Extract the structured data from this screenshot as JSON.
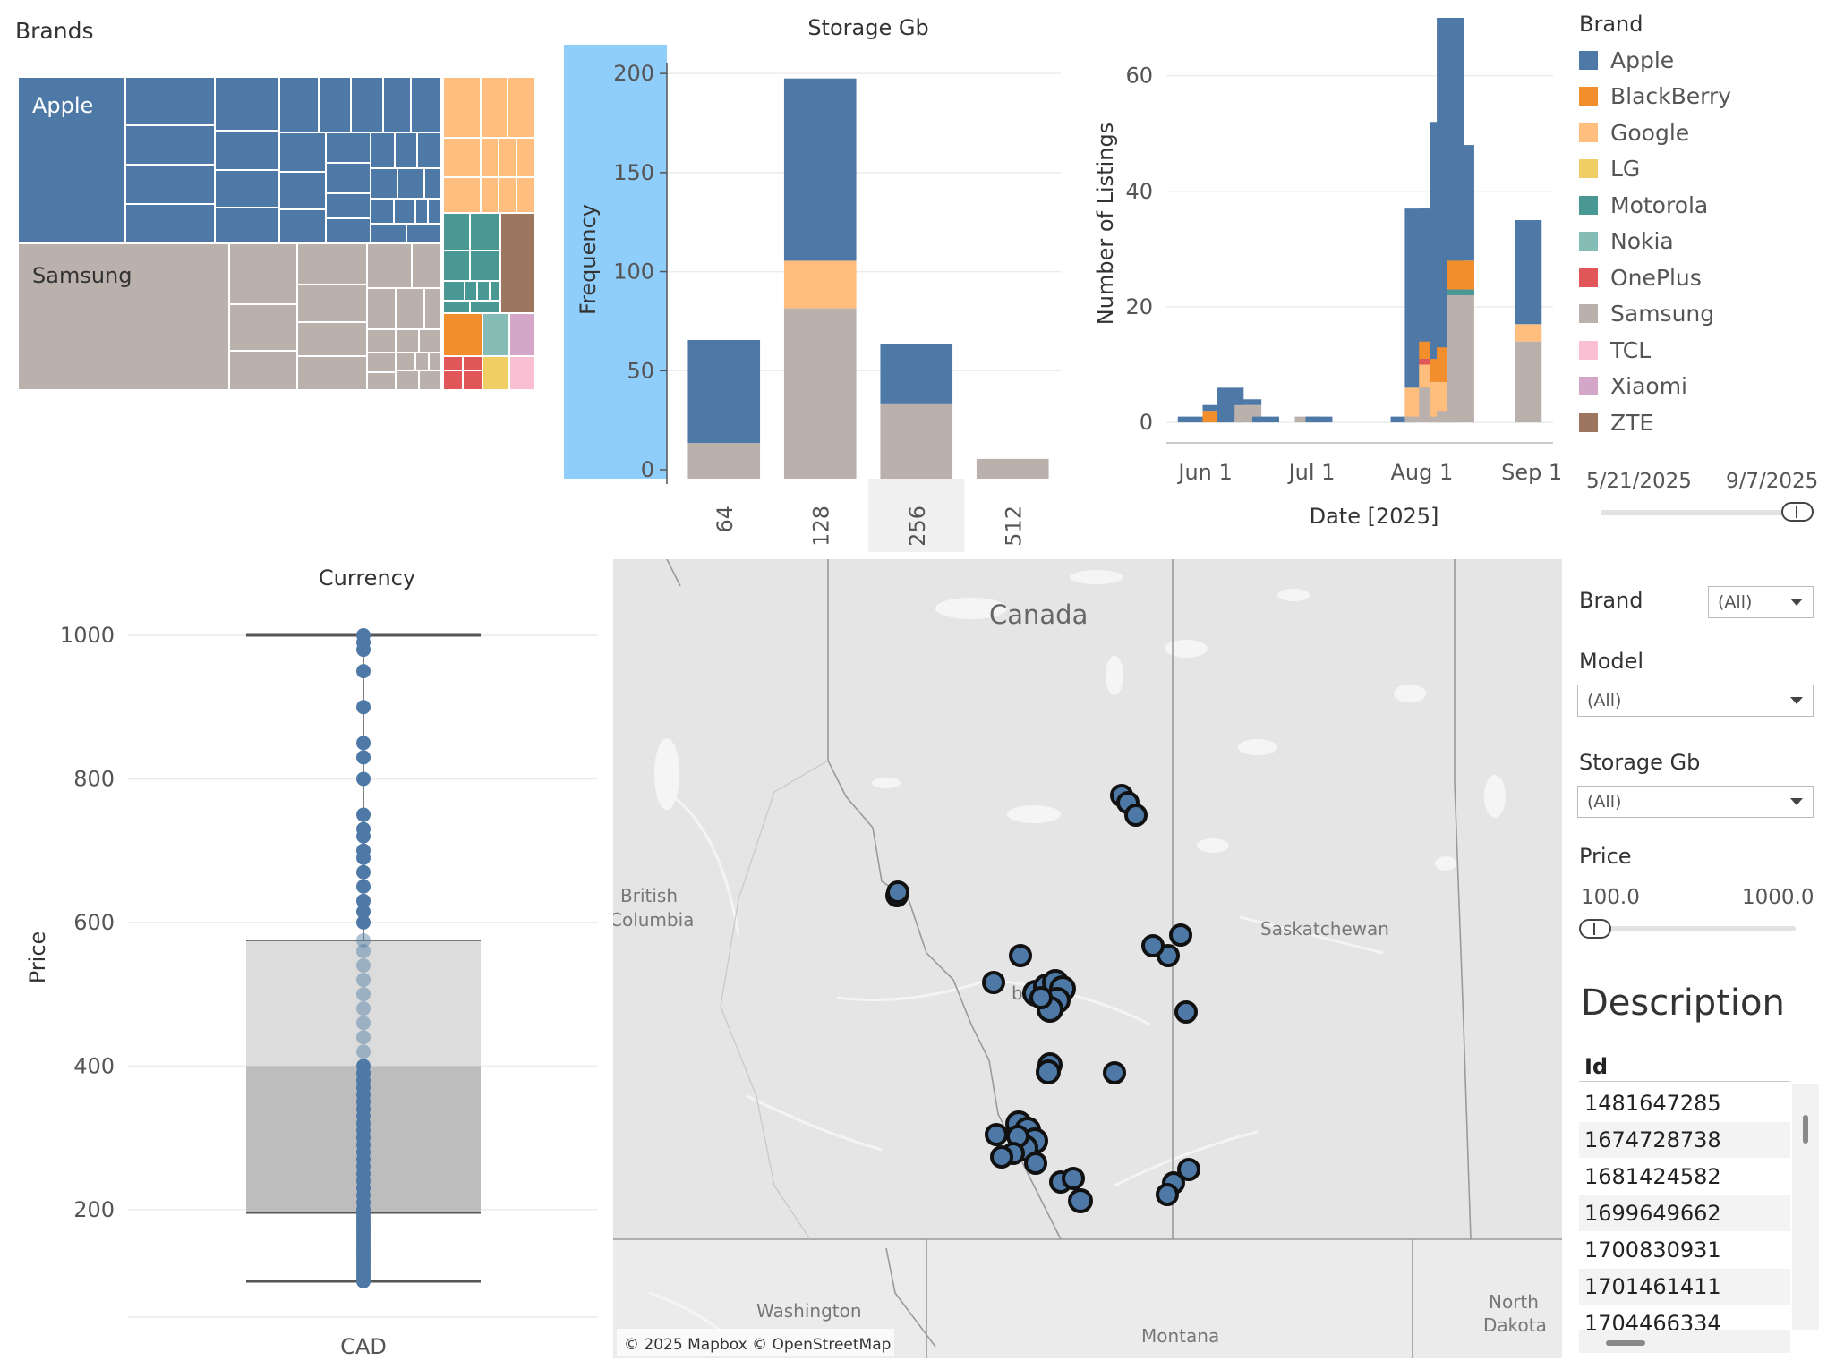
{
  "treemap": {
    "title": "Brands",
    "labels": {
      "apple": "Apple",
      "samsung": "Samsung"
    },
    "colors": {
      "Apple": "#4e79a7",
      "BlackBerry": "#f28e2b",
      "Google": "#ffbe7d",
      "LG": "#f1ce63",
      "Motorola": "#499894",
      "Nokia": "#86bcb6",
      "OnePlus": "#e15759",
      "Samsung": "#bab0ac",
      "TCL": "#fabfd2",
      "Xiaomi": "#d4a6c8",
      "ZTE": "#9d7660"
    }
  },
  "storage_chart": {
    "title": "Storage Gb",
    "chart_data": {
      "type": "bar",
      "stacked": true,
      "title": "Storage Gb",
      "xlabel": "",
      "ylabel": "Frequency",
      "categories": [
        "64",
        "128",
        "256",
        "512"
      ],
      "ylim": [
        0,
        210
      ],
      "yticks": [
        0,
        50,
        100,
        150,
        200
      ],
      "series": [
        {
          "name": "Samsung",
          "values": [
            18,
            86,
            38,
            10
          ]
        },
        {
          "name": "Google",
          "values": [
            0,
            24,
            0,
            0
          ]
        },
        {
          "name": "Apple",
          "values": [
            52,
            92,
            30,
            0
          ]
        }
      ],
      "selected_category": "256"
    }
  },
  "date_chart": {
    "chart_data": {
      "type": "bar",
      "stacked": true,
      "xlabel": "Date [2025]",
      "ylabel": "Number of Listings",
      "x_ticks": [
        "Jun 1",
        "Jul 1",
        "Aug 1",
        "Sep 1"
      ],
      "yticks": [
        0,
        20,
        40,
        60
      ],
      "ylim": [
        -2,
        70
      ],
      "bars": [
        {
          "date": "2025-05-28",
          "Apple": 1
        },
        {
          "date": "2025-06-04",
          "Apple": 1,
          "BlackBerry": 2
        },
        {
          "date": "2025-06-08",
          "Apple": 6
        },
        {
          "date": "2025-06-13",
          "Apple": 1,
          "Samsung": 3
        },
        {
          "date": "2025-06-18",
          "Apple": 1
        },
        {
          "date": "2025-06-30",
          "Samsung": 1
        },
        {
          "date": "2025-07-03",
          "Apple": 1
        },
        {
          "date": "2025-07-27",
          "Apple": 1
        },
        {
          "date": "2025-07-31",
          "Samsung": 1,
          "Google": 5,
          "Apple": 31
        },
        {
          "date": "2025-08-04",
          "Samsung": 6,
          "Google": 4,
          "OnePlus": 1,
          "BlackBerry": 3,
          "Apple": 23
        },
        {
          "date": "2025-08-07",
          "Samsung": 1,
          "Google": 6,
          "Apple": 41,
          "BlackBerry": 4
        },
        {
          "date": "2025-08-09",
          "Samsung": 2,
          "Google": 5,
          "BlackBerry": 6,
          "Apple": 57
        },
        {
          "date": "2025-08-12",
          "Samsung": 22,
          "Motorola": 1,
          "Apple": 20,
          "BlackBerry": 5
        },
        {
          "date": "2025-08-31",
          "Samsung": 14,
          "Google": 3,
          "Apple": 18
        }
      ]
    }
  },
  "date_legend": {
    "title": "Brand",
    "items": [
      {
        "name": "Apple",
        "color": "#4e79a7"
      },
      {
        "name": "BlackBerry",
        "color": "#f28e2b"
      },
      {
        "name": "Google",
        "color": "#ffbe7d"
      },
      {
        "name": "LG",
        "color": "#f1ce63"
      },
      {
        "name": "Motorola",
        "color": "#499894"
      },
      {
        "name": "Nokia",
        "color": "#86bcb6"
      },
      {
        "name": "OnePlus",
        "color": "#e15759"
      },
      {
        "name": "Samsung",
        "color": "#bab0ac"
      },
      {
        "name": "TCL",
        "color": "#fabfd2"
      },
      {
        "name": "Xiaomi",
        "color": "#d4a6c8"
      },
      {
        "name": "ZTE",
        "color": "#9d7660"
      }
    ]
  },
  "date_range": {
    "start": "5/21/2025",
    "end": "9/7/2025",
    "level": 1.0
  },
  "box_chart": {
    "title": "Currency",
    "chart_data": {
      "type": "box",
      "title": "Currency",
      "xlabel": "",
      "ylabel": "Price",
      "categories": [
        "CAD"
      ],
      "ylim": [
        80,
        1030
      ],
      "yticks": [
        200,
        400,
        600,
        800,
        1000
      ],
      "min": 100,
      "q1": 195,
      "median": 400,
      "q3": 575,
      "max": 1000,
      "points": [
        100,
        105,
        110,
        115,
        120,
        125,
        130,
        135,
        140,
        145,
        150,
        155,
        160,
        165,
        170,
        175,
        180,
        185,
        190,
        195,
        200,
        210,
        220,
        230,
        240,
        250,
        260,
        270,
        280,
        290,
        300,
        310,
        320,
        330,
        340,
        350,
        360,
        370,
        380,
        390,
        400,
        420,
        440,
        460,
        480,
        500,
        520,
        540,
        560,
        575,
        600,
        615,
        630,
        650,
        670,
        690,
        700,
        720,
        730,
        750,
        800,
        830,
        850,
        900,
        950,
        980,
        990,
        1000
      ]
    }
  },
  "map": {
    "labels": {
      "country": "Canada",
      "bc": "British Columbia",
      "sask": "Saskatchewan",
      "wash": "Washington",
      "mont": "Montana",
      "nd": "North Dakota",
      "alberta_partial": "be"
    },
    "attribution": "© 2025 Mapbox © OpenStreetMap"
  },
  "filters": {
    "brand": {
      "label": "Brand",
      "value": "(All)"
    },
    "model": {
      "label": "Model",
      "value": "(All)"
    },
    "storage": {
      "label": "Storage Gb",
      "value": "(All)"
    },
    "price": {
      "label": "Price",
      "min": "100.0",
      "max": "1000.0",
      "level": 0.0
    }
  },
  "description": {
    "title": "Description",
    "column": "Id",
    "rows": [
      "1481647285",
      "1674728738",
      "1681424582",
      "1699649662",
      "1700830931",
      "1701461411",
      "1704466334"
    ]
  }
}
